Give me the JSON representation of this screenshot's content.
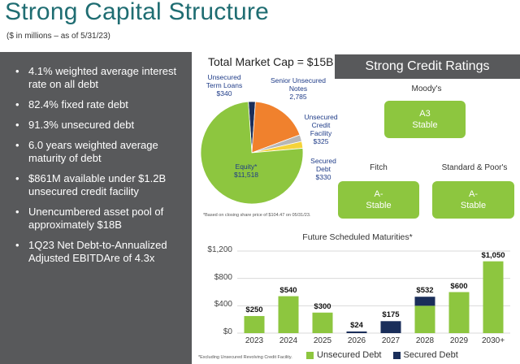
{
  "header": {
    "title": "Strong Capital Structure",
    "subtitle": "($ in millions – as of 5/31/23)"
  },
  "bullets": [
    "4.1% weighted average interest rate on all debt",
    "82.4% fixed rate debt",
    "91.3% unsecured debt",
    "6.0 years weighted average maturity of debt",
    "$861M available under $1.2B unsecured credit facility",
    "Unencumbered asset pool of approximately $18B",
    "1Q23 Net Debt-to-Annualized Adjusted EBITDAre of 4.3x"
  ],
  "market_cap": {
    "title": "Total Market Cap = $15B",
    "footnote": "*Based on closing share price of $104.47 on 05/31/23.",
    "slices": [
      {
        "label": "Equity*",
        "value_text": "$11,518",
        "value": 11518,
        "color": "#8dc63f"
      },
      {
        "label": "Unsecured Term Loans",
        "value_text": "$340",
        "value": 340,
        "color": "#1a2e5a"
      },
      {
        "label": "Senior Unsecured Notes",
        "value_text": "2,785",
        "value": 2785,
        "color": "#f0812d"
      },
      {
        "label": "Unsecured Credit Facility",
        "value_text": "$325",
        "value": 325,
        "color": "#b7b7b7"
      },
      {
        "label": "Secured Debt",
        "value_text": "$330",
        "value": 330,
        "color": "#f5d33a"
      }
    ]
  },
  "ratings": {
    "header": "Strong Credit Ratings",
    "agencies": [
      {
        "name": "Moody's",
        "rating": "A3",
        "outlook": "Stable"
      },
      {
        "name": "Fitch",
        "rating": "A-",
        "outlook": "Stable"
      },
      {
        "name": "Standard & Poor's",
        "rating": "A-",
        "outlook": "Stable"
      }
    ]
  },
  "chart_data": {
    "type": "bar",
    "title": "Future Scheduled Maturities*",
    "categories": [
      "2023",
      "2024",
      "2025",
      "2026",
      "2027",
      "2028",
      "2029",
      "2030+"
    ],
    "series": [
      {
        "name": "Unsecured Debt",
        "values": [
          250,
          540,
          300,
          0,
          0,
          400,
          600,
          1050
        ],
        "color": "#8dc63f"
      },
      {
        "name": "Secured Debt",
        "values": [
          0,
          0,
          0,
          24,
          175,
          132,
          0,
          0
        ],
        "color": "#1a2e5a"
      }
    ],
    "totals": [
      "$250",
      "$540",
      "$300",
      "$24",
      "$175",
      "$532",
      "$600",
      "$1,050"
    ],
    "yticks": [
      "$0",
      "$400",
      "$800",
      "$1,200"
    ],
    "ylim": [
      0,
      1200
    ],
    "footnote": "*Excluding Unsecured Revolving Credit Facility."
  }
}
